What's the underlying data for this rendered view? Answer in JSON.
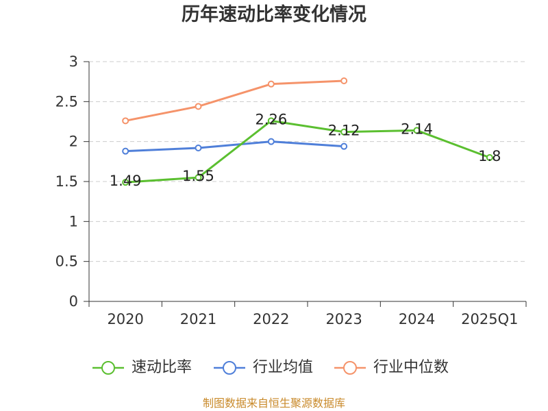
{
  "footer": "制图数据来自恒生聚源数据库",
  "colors": {
    "text": "#333333",
    "grid": "#cccccc",
    "footer": "#c98a2b",
    "data_label": "#222222"
  },
  "chart_data": {
    "type": "line",
    "title": "历年速动比率变化情况",
    "xlabel": "",
    "ylabel": "",
    "categories": [
      "2020",
      "2021",
      "2022",
      "2023",
      "2024",
      "2025Q1"
    ],
    "ylim": [
      0,
      3
    ],
    "yticks": [
      0,
      0.5,
      1,
      1.5,
      2,
      2.5,
      3
    ],
    "grid": true,
    "legend": "bottom",
    "series": [
      {
        "name": "速动比率",
        "color": "#5bbf30",
        "show_labels": true,
        "values": [
          1.49,
          1.55,
          2.26,
          2.12,
          2.14,
          1.8
        ]
      },
      {
        "name": "行业均值",
        "color": "#4f7fd9",
        "show_labels": false,
        "values": [
          1.88,
          1.92,
          2.0,
          1.94,
          null,
          null
        ]
      },
      {
        "name": "行业中位数",
        "color": "#f5936a",
        "show_labels": false,
        "values": [
          2.26,
          2.44,
          2.72,
          2.76,
          null,
          null
        ]
      }
    ]
  }
}
